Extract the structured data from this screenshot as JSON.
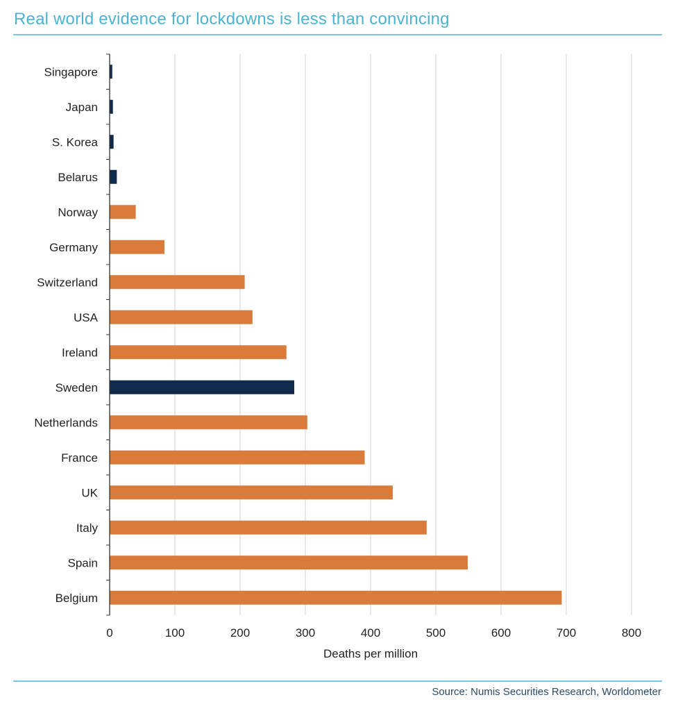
{
  "header": {
    "title": "Real world evidence for lockdowns is less than convincing"
  },
  "footer": {
    "source": "Source: Numis Securities Research, Worldometer"
  },
  "colors": {
    "title": "#4bb3d3",
    "rule": "#7cc7de",
    "lockdown": "#d97b3a",
    "no_lockdown": "#0f2a4a",
    "grid": "#d9d9d9",
    "axis": "#333333",
    "text": "#222222",
    "source": "#2d4a66"
  },
  "chart_data": {
    "type": "bar",
    "orientation": "horizontal",
    "title": "Real world evidence for lockdowns is less than convincing",
    "xlabel": "Deaths per million",
    "ylabel": "",
    "xlim": [
      0,
      800
    ],
    "xticks": [
      0,
      100,
      200,
      300,
      400,
      500,
      600,
      700,
      800
    ],
    "xtick_labels": [
      "0",
      "100",
      "200",
      "300",
      "400",
      "500",
      "600",
      "700",
      "800"
    ],
    "grid": "vertical",
    "legend": "none",
    "categories": [
      "Singapore",
      "Japan",
      "S. Korea",
      "Belarus",
      "Norway",
      "Germany",
      "Switzerland",
      "USA",
      "Ireland",
      "Sweden",
      "Netherlands",
      "France",
      "UK",
      "Italy",
      "Spain",
      "Belgium"
    ],
    "values": [
      4,
      5,
      6,
      11,
      40,
      84,
      207,
      219,
      271,
      283,
      303,
      391,
      434,
      486,
      549,
      693
    ],
    "groups": [
      "no_lockdown",
      "no_lockdown",
      "no_lockdown",
      "no_lockdown",
      "lockdown",
      "lockdown",
      "lockdown",
      "lockdown",
      "lockdown",
      "no_lockdown",
      "lockdown",
      "lockdown",
      "lockdown",
      "lockdown",
      "lockdown",
      "lockdown"
    ],
    "source": "Source: Numis Securities Research, Worldometer"
  }
}
